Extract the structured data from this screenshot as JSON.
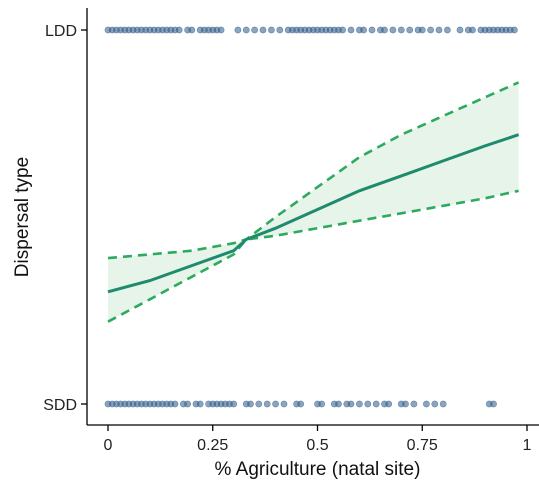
{
  "chart_data": {
    "type": "scatter",
    "title": "",
    "xlabel": "% Agriculture (natal site)",
    "ylabel": "Dispersal type",
    "xlim": [
      -0.05,
      1.02
    ],
    "ylim": [
      0,
      1
    ],
    "x_ticks": [
      {
        "value": 0,
        "label": "0"
      },
      {
        "value": 0.25,
        "label": "0.25"
      },
      {
        "value": 0.5,
        "label": "0.5"
      },
      {
        "value": 0.75,
        "label": "0.75"
      },
      {
        "value": 1,
        "label": "1"
      }
    ],
    "y_ticks": [
      {
        "value": 0,
        "label": "SDD"
      },
      {
        "value": 1,
        "label": "LDD"
      }
    ],
    "grid": false,
    "legend": "none",
    "colors": {
      "points": "#2e5a87",
      "fit_line": "#1f8a6e",
      "ci_line": "#2eaa5e",
      "ci_fill": "#e6f4ea"
    },
    "series": [
      {
        "kind": "points",
        "y_class": "LDD",
        "y": 1,
        "x": [
          0.0,
          0.01,
          0.02,
          0.03,
          0.04,
          0.05,
          0.06,
          0.07,
          0.08,
          0.09,
          0.1,
          0.11,
          0.12,
          0.13,
          0.14,
          0.15,
          0.16,
          0.17,
          0.19,
          0.2,
          0.22,
          0.23,
          0.24,
          0.25,
          0.26,
          0.27,
          0.31,
          0.33,
          0.35,
          0.37,
          0.39,
          0.41,
          0.43,
          0.44,
          0.45,
          0.46,
          0.47,
          0.48,
          0.49,
          0.5,
          0.51,
          0.52,
          0.53,
          0.54,
          0.55,
          0.56,
          0.58,
          0.6,
          0.61,
          0.63,
          0.65,
          0.66,
          0.68,
          0.7,
          0.72,
          0.74,
          0.75,
          0.77,
          0.79,
          0.81,
          0.84,
          0.86,
          0.87,
          0.89,
          0.9,
          0.91,
          0.92,
          0.93,
          0.94,
          0.95,
          0.96,
          0.97
        ]
      },
      {
        "kind": "points",
        "y_class": "SDD",
        "y": 0,
        "x": [
          0.0,
          0.01,
          0.02,
          0.03,
          0.04,
          0.05,
          0.06,
          0.07,
          0.08,
          0.09,
          0.1,
          0.11,
          0.12,
          0.13,
          0.14,
          0.15,
          0.16,
          0.18,
          0.19,
          0.21,
          0.22,
          0.24,
          0.25,
          0.26,
          0.27,
          0.28,
          0.29,
          0.3,
          0.33,
          0.34,
          0.36,
          0.38,
          0.4,
          0.42,
          0.45,
          0.46,
          0.5,
          0.51,
          0.54,
          0.55,
          0.57,
          0.58,
          0.6,
          0.62,
          0.64,
          0.66,
          0.67,
          0.7,
          0.71,
          0.73,
          0.76,
          0.78,
          0.8,
          0.91,
          0.92
        ]
      },
      {
        "kind": "fit",
        "x": [
          0,
          0.1,
          0.2,
          0.3,
          0.33,
          0.4,
          0.5,
          0.6,
          0.7,
          0.8,
          0.9,
          0.98
        ],
        "y": [
          0.3,
          0.33,
          0.37,
          0.41,
          0.44,
          0.47,
          0.52,
          0.57,
          0.61,
          0.65,
          0.69,
          0.72
        ]
      },
      {
        "kind": "ci_upper",
        "x": [
          0,
          0.1,
          0.2,
          0.3,
          0.33,
          0.4,
          0.5,
          0.6,
          0.7,
          0.8,
          0.9,
          0.98
        ],
        "y": [
          0.39,
          0.4,
          0.41,
          0.43,
          0.44,
          0.5,
          0.58,
          0.66,
          0.72,
          0.77,
          0.82,
          0.86
        ]
      },
      {
        "kind": "ci_lower",
        "x": [
          0,
          0.1,
          0.2,
          0.3,
          0.33,
          0.4,
          0.5,
          0.6,
          0.7,
          0.8,
          0.9,
          0.98
        ],
        "y": [
          0.22,
          0.28,
          0.34,
          0.4,
          0.44,
          0.45,
          0.47,
          0.49,
          0.51,
          0.53,
          0.55,
          0.57
        ]
      }
    ]
  }
}
